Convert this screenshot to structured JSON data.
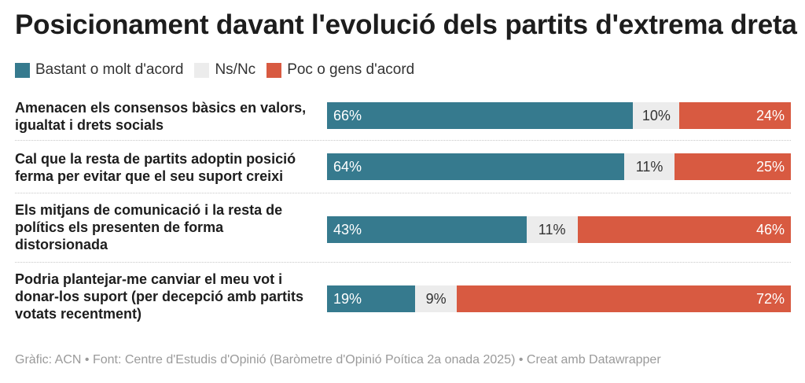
{
  "title": "Posicionament davant l'evolució dels partits d'extrema dreta",
  "legend": [
    {
      "label": "Bastant o molt d'acord",
      "color": "#367a8e"
    },
    {
      "label": "Ns/Nc",
      "color": "#ececec"
    },
    {
      "label": "Poc o gens d'acord",
      "color": "#d85a41"
    }
  ],
  "footer": "Gràfic: ACN • Font: Centre d'Estudis d'Opinió (Baròmetre d'Opinió Poítica 2a onada 2025) • Creat amb Datawrapper",
  "chart_data": {
    "type": "bar",
    "stacked": true,
    "orientation": "horizontal",
    "categories": [
      [
        "Amenacen els consensos bàsics en valors,",
        "igualtat i drets socials"
      ],
      [
        "Cal que la resta de partits adoptin posició",
        "ferma per evitar que el seu suport creixi"
      ],
      [
        "Els mitjans de comunicació i la resta de",
        "polítics els presenten de forma",
        "distorsionada"
      ],
      [
        "Podria plantejar-me canviar el meu vot i",
        "donar-los suport (per decepció amb partits",
        "votats recentment)"
      ]
    ],
    "series": [
      {
        "name": "Bastant o molt d'acord",
        "color": "#367a8e",
        "values": [
          66,
          64,
          43,
          19
        ],
        "labels": [
          "66%",
          "64%",
          "43%",
          "19%"
        ]
      },
      {
        "name": "Ns/Nc",
        "color": "#ececec",
        "values": [
          10,
          11,
          11,
          9
        ],
        "labels": [
          "10%",
          "11%",
          "11%",
          "9%"
        ]
      },
      {
        "name": "Poc o gens d'acord",
        "color": "#d85a41",
        "values": [
          24,
          25,
          46,
          72
        ],
        "labels": [
          "24%",
          "25%",
          "46%",
          "72%"
        ]
      }
    ],
    "xlim": [
      0,
      100
    ],
    "legend_position": "top-left"
  }
}
